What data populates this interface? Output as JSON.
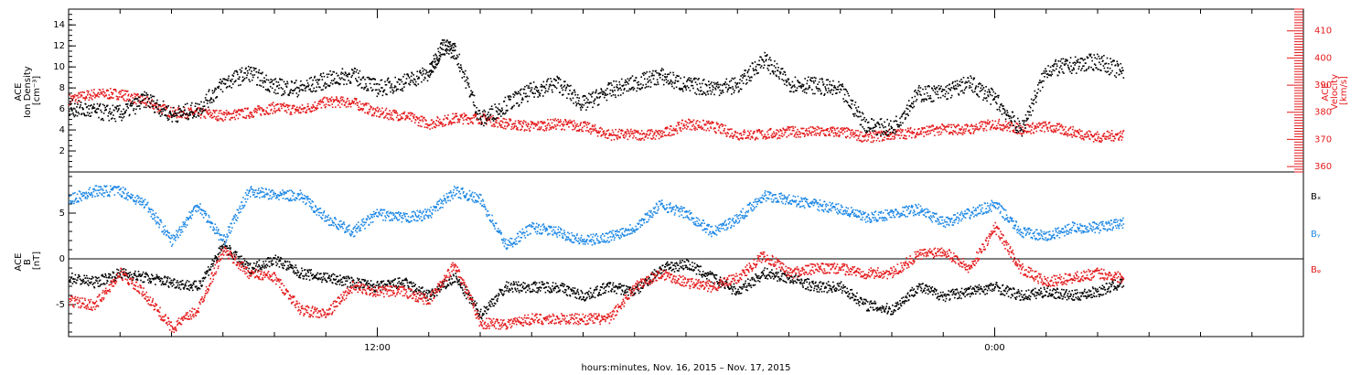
{
  "chart_data": [
    {
      "type": "scatter",
      "ylabel": "ACE\nIon Density\n[cm⁻³]",
      "ylabel_right": "ACE\nVelocity\n[km/s]",
      "y_ticks": [
        "2",
        "4",
        "6",
        "8",
        "10",
        "12",
        "14"
      ],
      "y_right_ticks": [
        "360",
        "370",
        "380",
        "390",
        "400",
        "410"
      ],
      "ylim": [
        0,
        15.5
      ],
      "ylim_right": [
        358,
        418
      ],
      "series": [
        {
          "color": "#000000",
          "axis": "left",
          "points": [
            [
              0.0,
              6.2
            ],
            [
              1.0,
              5.8
            ],
            [
              2.0,
              5.6
            ],
            [
              3.0,
              7.0
            ],
            [
              4.0,
              5.5
            ],
            [
              5.0,
              6.0
            ],
            [
              6.0,
              8.5
            ],
            [
              7.0,
              9.5
            ],
            [
              8.0,
              8.2
            ],
            [
              9.0,
              8.0
            ],
            [
              10.0,
              8.8
            ],
            [
              11.0,
              9.3
            ],
            [
              12.0,
              8.0
            ],
            [
              13.0,
              8.6
            ],
            [
              14.0,
              9.5
            ],
            [
              14.5,
              12.0
            ],
            [
              15.0,
              11.6
            ],
            [
              16.0,
              5.0
            ],
            [
              17.0,
              6.5
            ],
            [
              18.0,
              7.8
            ],
            [
              19.0,
              8.5
            ],
            [
              20.0,
              6.5
            ],
            [
              21.0,
              7.8
            ],
            [
              22.0,
              8.5
            ],
            [
              23.0,
              9.2
            ],
            [
              24.0,
              8.3
            ],
            [
              25.0,
              8.1
            ],
            [
              26.0,
              8.3
            ],
            [
              27.0,
              10.8
            ],
            [
              28.0,
              8.5
            ],
            [
              29.0,
              8.3
            ],
            [
              30.0,
              7.8
            ],
            [
              31.0,
              4.5
            ],
            [
              32.0,
              4.2
            ],
            [
              33.0,
              7.5
            ],
            [
              34.0,
              7.6
            ],
            [
              35.0,
              8.5
            ],
            [
              36.0,
              7.0
            ],
            [
              37.0,
              4.0
            ],
            [
              38.0,
              9.8
            ],
            [
              39.0,
              10.2
            ],
            [
              40.0,
              10.6
            ],
            [
              41.0,
              9.5
            ]
          ]
        },
        {
          "color": "#e41a1c",
          "axis": "right",
          "points": [
            [
              0.0,
              385
            ],
            [
              1.0,
              387
            ],
            [
              2.0,
              387
            ],
            [
              3.0,
              384
            ],
            [
              4.0,
              380
            ],
            [
              5.0,
              380
            ],
            [
              6.0,
              379
            ],
            [
              7.0,
              380
            ],
            [
              8.0,
              382
            ],
            [
              9.0,
              381
            ],
            [
              10.0,
              384
            ],
            [
              11.0,
              384
            ],
            [
              12.0,
              380
            ],
            [
              13.0,
              379
            ],
            [
              14.0,
              376
            ],
            [
              15.0,
              378
            ],
            [
              16.0,
              378
            ],
            [
              17.0,
              376
            ],
            [
              18.0,
              375
            ],
            [
              19.0,
              376
            ],
            [
              20.0,
              375
            ],
            [
              21.0,
              372
            ],
            [
              22.0,
              372
            ],
            [
              23.0,
              372
            ],
            [
              24.0,
              376
            ],
            [
              25.0,
              375
            ],
            [
              26.0,
              372
            ],
            [
              27.0,
              372
            ],
            [
              28.0,
              373
            ],
            [
              29.0,
              373
            ],
            [
              30.0,
              373
            ],
            [
              31.0,
              371
            ],
            [
              32.0,
              372
            ],
            [
              33.0,
              373
            ],
            [
              34.0,
              374
            ],
            [
              35.0,
              374
            ],
            [
              36.0,
              376
            ],
            [
              37.0,
              374
            ],
            [
              38.0,
              375
            ],
            [
              39.0,
              373
            ],
            [
              40.0,
              371
            ],
            [
              41.0,
              372
            ]
          ]
        }
      ]
    },
    {
      "type": "scatter",
      "ylabel": "ACE\nB\n[nT]",
      "y_ticks": [
        "-5",
        "0",
        "5"
      ],
      "ylim": [
        -8.5,
        9.5
      ],
      "zero_line": true,
      "series": [
        {
          "name": "Bₓ",
          "color": "#000000",
          "points": [
            [
              0.0,
              -2.0
            ],
            [
              1.0,
              -2.5
            ],
            [
              2.0,
              -1.5
            ],
            [
              3.0,
              -2.0
            ],
            [
              4.0,
              -2.5
            ],
            [
              5.0,
              -3.0
            ],
            [
              6.0,
              1.5
            ],
            [
              7.0,
              -1.0
            ],
            [
              8.0,
              0.0
            ],
            [
              9.0,
              -1.5
            ],
            [
              10.0,
              -2.0
            ],
            [
              11.0,
              -2.5
            ],
            [
              12.0,
              -3.0
            ],
            [
              13.0,
              -2.5
            ],
            [
              14.0,
              -4.0
            ],
            [
              15.0,
              -2.0
            ],
            [
              16.0,
              -6.0
            ],
            [
              17.0,
              -3.0
            ],
            [
              18.0,
              -3.0
            ],
            [
              19.0,
              -3.0
            ],
            [
              20.0,
              -4.0
            ],
            [
              21.0,
              -3.0
            ],
            [
              22.0,
              -3.5
            ],
            [
              23.0,
              -1.0
            ],
            [
              24.0,
              -0.5
            ],
            [
              25.0,
              -2.0
            ],
            [
              26.0,
              -3.5
            ],
            [
              27.0,
              -1.5
            ],
            [
              28.0,
              -2.0
            ],
            [
              29.0,
              -3.0
            ],
            [
              30.0,
              -3.0
            ],
            [
              31.0,
              -5.0
            ],
            [
              32.0,
              -5.5
            ],
            [
              33.0,
              -3.0
            ],
            [
              34.0,
              -4.0
            ],
            [
              35.0,
              -3.5
            ],
            [
              36.0,
              -3.0
            ],
            [
              37.0,
              -4.0
            ],
            [
              38.0,
              -3.5
            ],
            [
              39.0,
              -4.0
            ],
            [
              40.0,
              -3.5
            ],
            [
              41.0,
              -2.5
            ]
          ]
        },
        {
          "name": "Bᵧ",
          "color": "#1e88e5",
          "points": [
            [
              0.0,
              6.5
            ],
            [
              1.0,
              7.5
            ],
            [
              2.0,
              7.5
            ],
            [
              3.0,
              6.0
            ],
            [
              4.0,
              2.0
            ],
            [
              5.0,
              6.0
            ],
            [
              6.0,
              2.0
            ],
            [
              7.0,
              7.5
            ],
            [
              8.0,
              7.0
            ],
            [
              9.0,
              7.0
            ],
            [
              10.0,
              4.5
            ],
            [
              11.0,
              3.0
            ],
            [
              12.0,
              5.0
            ],
            [
              13.0,
              4.5
            ],
            [
              14.0,
              5.0
            ],
            [
              15.0,
              7.5
            ],
            [
              16.0,
              6.5
            ],
            [
              17.0,
              1.5
            ],
            [
              18.0,
              3.5
            ],
            [
              19.0,
              3.0
            ],
            [
              20.0,
              2.0
            ],
            [
              21.0,
              2.5
            ],
            [
              22.0,
              3.5
            ],
            [
              23.0,
              6.0
            ],
            [
              24.0,
              5.0
            ],
            [
              25.0,
              3.0
            ],
            [
              26.0,
              4.5
            ],
            [
              27.0,
              7.0
            ],
            [
              28.0,
              6.5
            ],
            [
              29.0,
              6.0
            ],
            [
              30.0,
              5.5
            ],
            [
              31.0,
              4.5
            ],
            [
              32.0,
              5.0
            ],
            [
              33.0,
              5.5
            ],
            [
              34.0,
              4.0
            ],
            [
              35.0,
              5.0
            ],
            [
              36.0,
              6.0
            ],
            [
              37.0,
              3.0
            ],
            [
              38.0,
              2.5
            ],
            [
              39.0,
              3.5
            ],
            [
              40.0,
              3.5
            ],
            [
              41.0,
              4.0
            ]
          ]
        },
        {
          "name": "Bᵩ",
          "color": "#e41a1c",
          "points": [
            [
              0.0,
              -4.5
            ],
            [
              1.0,
              -5.0
            ],
            [
              2.0,
              -1.5
            ],
            [
              3.0,
              -4.0
            ],
            [
              4.0,
              -7.5
            ],
            [
              5.0,
              -5.5
            ],
            [
              6.0,
              1.0
            ],
            [
              7.0,
              -1.5
            ],
            [
              8.0,
              -2.0
            ],
            [
              9.0,
              -5.5
            ],
            [
              10.0,
              -6.0
            ],
            [
              11.0,
              -3.0
            ],
            [
              12.0,
              -3.5
            ],
            [
              13.0,
              -3.5
            ],
            [
              14.0,
              -4.5
            ],
            [
              15.0,
              -0.5
            ],
            [
              16.0,
              -7.0
            ],
            [
              17.0,
              -7.0
            ],
            [
              18.0,
              -6.5
            ],
            [
              19.0,
              -6.5
            ],
            [
              20.0,
              -6.5
            ],
            [
              21.0,
              -6.5
            ],
            [
              22.0,
              -3.0
            ],
            [
              23.0,
              -1.5
            ],
            [
              24.0,
              -2.5
            ],
            [
              25.0,
              -3.0
            ],
            [
              26.0,
              -2.0
            ],
            [
              27.0,
              0.5
            ],
            [
              28.0,
              -1.5
            ],
            [
              29.0,
              -1.0
            ],
            [
              30.0,
              -1.0
            ],
            [
              31.0,
              -1.5
            ],
            [
              32.0,
              -1.5
            ],
            [
              33.0,
              0.5
            ],
            [
              34.0,
              1.0
            ],
            [
              35.0,
              -1.0
            ],
            [
              36.0,
              3.5
            ],
            [
              37.0,
              -1.0
            ],
            [
              38.0,
              -2.5
            ],
            [
              39.0,
              -2.0
            ],
            [
              40.0,
              -1.5
            ],
            [
              41.0,
              -2.0
            ]
          ]
        }
      ]
    }
  ],
  "x_axis": {
    "tick_labels": [
      "12:00",
      "0:00"
    ],
    "xlabel": "hours:minutes, Nov. 16, 2015 – Nov. 17, 2015"
  }
}
